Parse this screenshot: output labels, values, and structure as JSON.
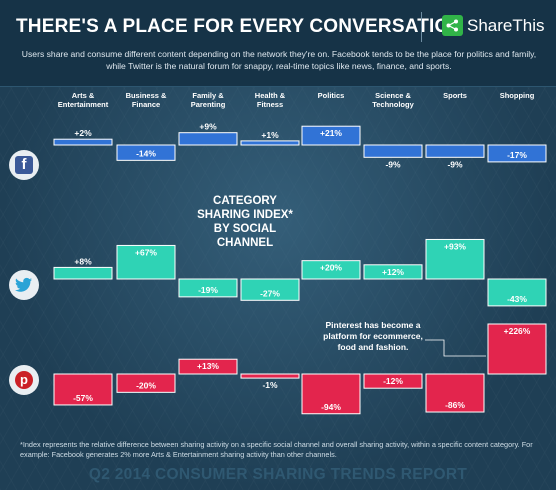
{
  "header": {
    "title": "THERE'S A PLACE FOR EVERY CONVERSATION",
    "brand": "ShareThis",
    "intro": "Users share and consume different content depending on the network they're on. Facebook tends to be the place for politics and family, while Twitter is the natural forum for snappy, real-time topics like news, finance, and sports."
  },
  "center_title": "CATEGORY SHARING INDEX* BY SOCIAL CHANNEL",
  "note": "Pinterest has become a platform for ecommerce, food and fashion.",
  "footnote": "*Index represents the relative difference between sharing activity on a specific social channel and overall sharing activity, within a specific content category. For example: Facebook generates 2% more Arts & Entertainment sharing activity than other channels.",
  "report_title": "Q2 2014 CONSUMER SHARING TRENDS REPORT",
  "icons": {
    "facebook": "facebook-icon",
    "twitter": "twitter-icon",
    "pinterest": "pinterest-icon"
  },
  "colors": {
    "facebook": "#3173d6",
    "twitter": "#2fd3b5",
    "pinterest": "#e3254d",
    "background": "#1f3f55"
  },
  "chart_data": {
    "type": "bar",
    "title": "CATEGORY SHARING INDEX* BY SOCIAL CHANNEL",
    "categories": [
      "Arts & Entertainment",
      "Business & Finance",
      "Family & Parenting",
      "Health & Fitness",
      "Politics",
      "Science & Technology",
      "Sports",
      "Shopping"
    ],
    "series": [
      {
        "name": "Facebook",
        "values": [
          2,
          -14,
          9,
          1,
          21,
          -9,
          -9,
          -17
        ]
      },
      {
        "name": "Twitter",
        "values": [
          8,
          67,
          -19,
          -27,
          20,
          12,
          93,
          -43
        ]
      },
      {
        "name": "Pinterest",
        "values": [
          -57,
          -20,
          13,
          -1,
          -94,
          -12,
          -86,
          226
        ]
      }
    ],
    "labels": [
      [
        "+2%",
        "-14%",
        "+9%",
        "+1%",
        "+21%",
        "-9%",
        "-9%",
        "-17%"
      ],
      [
        "+8%",
        "+67%",
        "-19%",
        "-27%",
        "+20%",
        "+12%",
        "+93%",
        "-43%"
      ],
      [
        "-57%",
        "-20%",
        "+13%",
        "-1%",
        "-94%",
        "-12%",
        "-86%",
        "+226%"
      ]
    ],
    "category_labels": [
      [
        "Arts &",
        "Entertainment"
      ],
      [
        "Business &",
        "Finance"
      ],
      [
        "Family &",
        "Parenting"
      ],
      [
        "Health &",
        "Fitness"
      ],
      [
        "Politics"
      ],
      [
        "Science &",
        "Technology"
      ],
      [
        "Sports"
      ],
      [
        "Shopping"
      ]
    ],
    "grid": false,
    "legend": "none"
  }
}
